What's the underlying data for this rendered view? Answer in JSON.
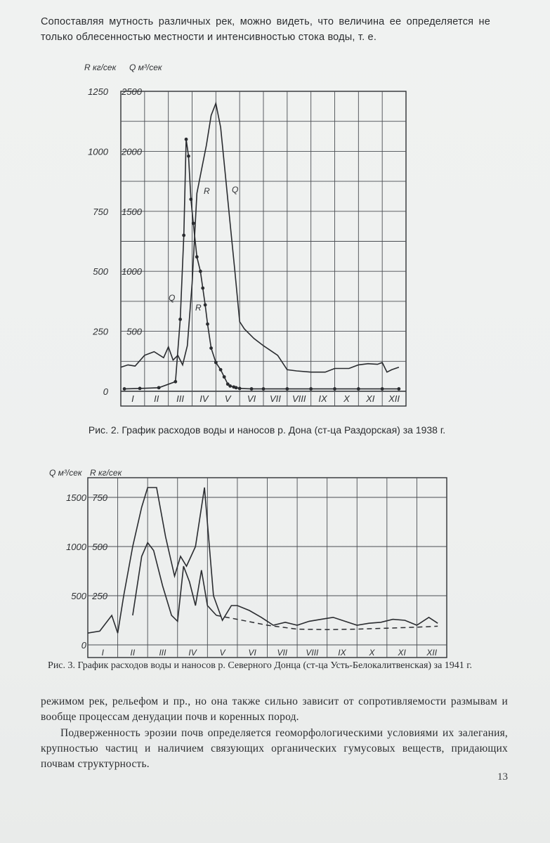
{
  "text": {
    "top_paragraph": "Сопоставляя мутность различных рек, можно видеть, что величина ее определяется не только облесенностью местности и интенсивностью стока воды, т. е.",
    "caption1": "Рис. 2. График расходов воды и наносов р. Дона (ст-ца Раздорская) за 1938 г.",
    "caption2": "Рис. 3. График расходов воды и наносов р. Северного Донца (ст-ца Усть-Белокалитвенская) за 1941 г.",
    "bottom_paragraph1": "режимом рек, рельефом и пр., но она также сильно зависит от сопротивляемости размывам и вообще процессам денудации почв и коренных пород.",
    "bottom_paragraph2": "Подверженность эрозии почв определяется геоморфологическими условиями их залегания, крупностью частиц и наличием связующих органических гумусовых веществ, придающих почвам структурность.",
    "page_number": "13"
  },
  "chart_data": [
    {
      "type": "line",
      "axis_label_R": "R кг/сек",
      "axis_label_Q": "Q м³/сек",
      "ticks_R": [
        "0",
        "250",
        "500",
        "750",
        "1000",
        "1250"
      ],
      "ticks_Q": [
        "500",
        "1000",
        "1500",
        "2000",
        "2500"
      ],
      "month_labels": [
        "I",
        "II",
        "III",
        "IV",
        "V",
        "VI",
        "VII",
        "VIII",
        "IX",
        "X",
        "XI",
        "XII"
      ],
      "curve_labels": [
        "Q",
        "R",
        "R",
        "Q"
      ],
      "ylim_R": [
        0,
        1250
      ],
      "ylim_Q": [
        0,
        2500
      ],
      "series": [
        {
          "name": "Q",
          "x": [
            0,
            0.3,
            0.6,
            1.0,
            1.4,
            1.8,
            2.0,
            2.2,
            2.4,
            2.6,
            2.8,
            3.0,
            3.2,
            3.4,
            3.6,
            3.8,
            4.0,
            4.2,
            4.4,
            4.6,
            4.8,
            5.0,
            5.2,
            5.6,
            6.0,
            6.6,
            7.0,
            7.4,
            8.0,
            8.6,
            9.0,
            9.6,
            10.0,
            10.4,
            10.8,
            11.0,
            11.2,
            11.4,
            11.7
          ],
          "y": [
            200,
            220,
            210,
            300,
            330,
            280,
            370,
            260,
            300,
            220,
            380,
            900,
            1650,
            1850,
            2050,
            2300,
            2400,
            2200,
            1800,
            1400,
            1000,
            580,
            520,
            440,
            380,
            300,
            180,
            170,
            160,
            160,
            190,
            190,
            220,
            230,
            225,
            240,
            160,
            180,
            200
          ]
        },
        {
          "name": "R",
          "x": [
            0.15,
            0.8,
            1.6,
            2.3,
            2.5,
            2.65,
            2.75,
            2.85,
            2.95,
            3.05,
            3.2,
            3.35,
            3.45,
            3.55,
            3.65,
            3.8,
            4.0,
            4.2,
            4.35,
            4.5,
            4.6,
            4.75,
            4.85,
            5.0,
            5.5,
            6.0,
            7.0,
            8.0,
            9.0,
            10.0,
            11.0,
            11.7
          ],
          "y": [
            10,
            12,
            15,
            40,
            300,
            650,
            1050,
            980,
            800,
            700,
            560,
            500,
            430,
            360,
            280,
            180,
            120,
            90,
            60,
            30,
            22,
            18,
            15,
            12,
            10,
            10,
            10,
            10,
            10,
            10,
            10,
            10
          ]
        }
      ]
    },
    {
      "type": "line",
      "axis_label_Q": "Q м³/сек",
      "axis_label_R": "R кг/сек",
      "ticks_Q": [
        "0",
        "500",
        "1000",
        "1500"
      ],
      "ticks_R": [
        "250",
        "500",
        "750"
      ],
      "month_labels": [
        "I",
        "II",
        "III",
        "IV",
        "V",
        "VI",
        "VII",
        "VIII",
        "IX",
        "X",
        "XI",
        "XII"
      ],
      "ylim_Q": [
        0,
        1700
      ],
      "ylim_R": [
        0,
        850
      ],
      "series": [
        {
          "name": "Q",
          "x": [
            0,
            0.4,
            0.8,
            1.0,
            1.2,
            1.5,
            1.8,
            2.0,
            2.3,
            2.6,
            2.9,
            3.1,
            3.3,
            3.6,
            3.9,
            4.2,
            4.5,
            4.8,
            5.0,
            5.4,
            5.8,
            6.2,
            6.6,
            7.0,
            7.4,
            7.8,
            8.2,
            8.6,
            9.0,
            9.4,
            9.8,
            10.2,
            10.6,
            11.0,
            11.4,
            11.7
          ],
          "y": [
            120,
            140,
            300,
            120,
            500,
            1000,
            1400,
            1600,
            1600,
            1100,
            700,
            900,
            800,
            1000,
            1600,
            500,
            250,
            400,
            400,
            350,
            280,
            200,
            230,
            200,
            240,
            260,
            280,
            240,
            200,
            220,
            230,
            260,
            250,
            200,
            280,
            220
          ]
        },
        {
          "name": "R",
          "x": [
            1.5,
            1.8,
            2.0,
            2.2,
            2.5,
            2.8,
            3.0,
            3.2,
            3.4,
            3.6,
            3.8,
            4.0,
            4.3
          ],
          "y": [
            150,
            450,
            520,
            480,
            300,
            150,
            120,
            400,
            320,
            200,
            380,
            200,
            150
          ]
        },
        {
          "name": "dashed",
          "x": [
            4.3,
            5.0,
            6.0,
            7.0,
            8.0,
            9.0,
            10.0,
            11.0,
            11.7
          ],
          "y": [
            150,
            130,
            100,
            80,
            78,
            80,
            85,
            90,
            95
          ]
        }
      ]
    }
  ]
}
